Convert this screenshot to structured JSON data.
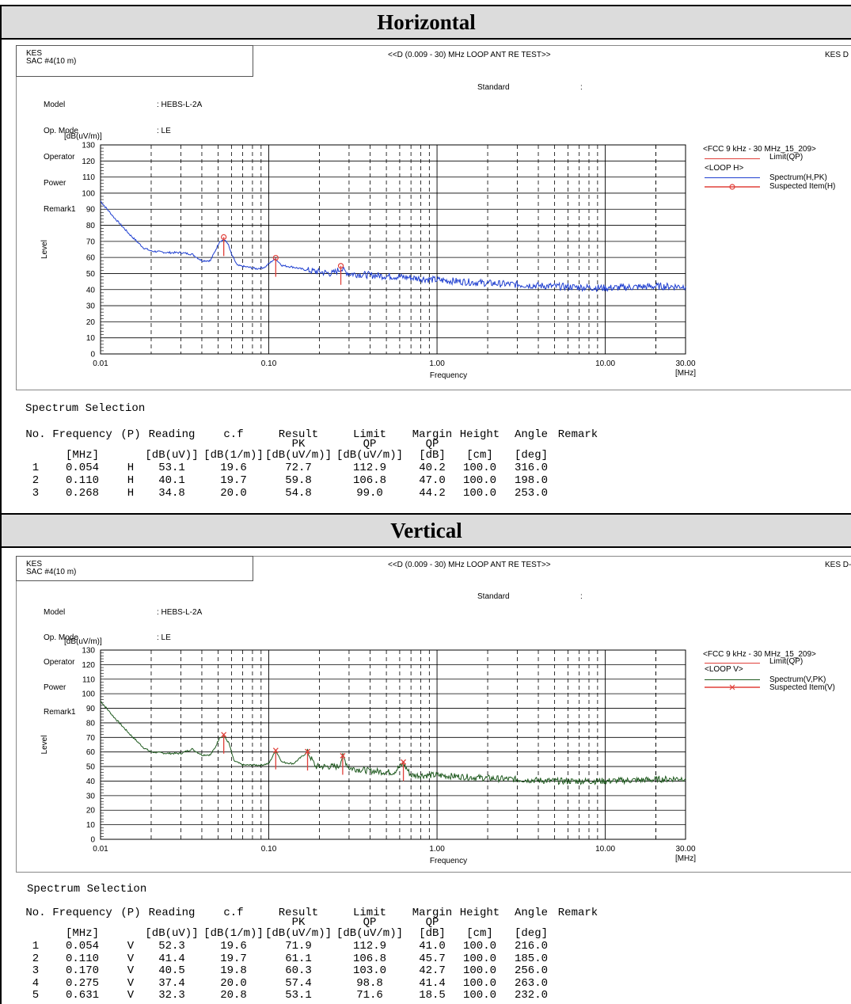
{
  "sections": [
    {
      "id": "h",
      "heading": "Horizontal",
      "lab": {
        "line1": "KES",
        "line2": "SAC #4(10 m)"
      },
      "test_title": "<<D (0.009 - 30) MHz LOOP ANT RE TEST>>",
      "report_tag": "KES D",
      "info": {
        "labels": [
          "Model",
          "Op. Mode",
          "Operator",
          "Power",
          "Remark1"
        ],
        "values": [
          ": HEBS-L-2A",
          ": LE",
          ":",
          ":",
          ":"
        ],
        "standard_label": "Standard",
        "standard_value": ":"
      },
      "legend": {
        "limit_group": "<FCC 9 kHz - 30 MHz_15_209>",
        "limit_item": "Limit(QP)",
        "loop_group": "<LOOP H>",
        "spectrum_item": "Spectrum(H,PK)",
        "suspected_item": "Suspected Item(H)"
      },
      "chart_data": {
        "type": "line",
        "ylabel": "Level",
        "yunit": "[dB(uV/m)]",
        "xlabel": "Frequency",
        "xunit": "[MHz]",
        "xscale": "log",
        "xlim": [
          0.01,
          30
        ],
        "ylim": [
          0,
          130
        ],
        "x_tick_labels": [
          "0.01",
          "0.10",
          "1.00",
          "10.00",
          "30.00"
        ],
        "y_tick_labels": [
          "0",
          "10",
          "20",
          "30",
          "40",
          "50",
          "60",
          "70",
          "80",
          "90",
          "100",
          "110",
          "120",
          "130"
        ],
        "grid": true,
        "series_color": "#1f3fd0",
        "marker_color": "#e0403a",
        "marker": "circle",
        "spectrum": {
          "x": [
            0.01,
            0.012,
            0.015,
            0.018,
            0.02,
            0.025,
            0.03,
            0.035,
            0.04,
            0.045,
            0.048,
            0.051,
            0.054,
            0.057,
            0.06,
            0.065,
            0.075,
            0.085,
            0.095,
            0.105,
            0.11,
            0.12,
            0.14,
            0.17,
            0.2,
            0.24,
            0.268,
            0.3,
            0.4,
            0.6,
            1.0,
            2.0,
            5.0,
            10.0,
            20.0,
            30.0
          ],
          "y": [
            95,
            85,
            74,
            66,
            64,
            63,
            63,
            62,
            58,
            58,
            64,
            70,
            71,
            69,
            62,
            55,
            54,
            53,
            54,
            58,
            59,
            55,
            54,
            52,
            51,
            50,
            53,
            50,
            49,
            48,
            46,
            44,
            42,
            41,
            42,
            42
          ]
        },
        "suspected": {
          "x": [
            0.054,
            0.11,
            0.268
          ],
          "y": [
            72.7,
            59.8,
            54.8
          ]
        }
      },
      "table": {
        "title": "Spectrum Selection",
        "headers": [
          "No.",
          "Frequency",
          "(P)",
          "Reading",
          "c.f",
          "Result",
          "Limit",
          "Margin",
          "Height",
          "Angle",
          "Remark"
        ],
        "subheaders": {
          "result": "PK",
          "limit": "QP",
          "margin": "QP"
        },
        "units": [
          "[MHz]",
          "[dB(uV)]",
          "[dB(1/m)]",
          "[dB(uV/m)]",
          "[dB(uV/m)]",
          "[dB]",
          "[cm]",
          "[deg]"
        ],
        "rows": [
          [
            "1",
            "0.054",
            "H",
            "53.1",
            "19.6",
            "72.7",
            "112.9",
            "40.2",
            "100.0",
            "316.0"
          ],
          [
            "2",
            "0.110",
            "H",
            "40.1",
            "19.7",
            "59.8",
            "106.8",
            "47.0",
            "100.0",
            "198.0"
          ],
          [
            "3",
            "0.268",
            "H",
            "34.8",
            "20.0",
            "54.8",
            "99.0",
            "44.2",
            "100.0",
            "253.0"
          ]
        ]
      }
    },
    {
      "id": "v",
      "heading": "Vertical",
      "lab": {
        "line1": "KES",
        "line2": "SAC #4(10 m)"
      },
      "test_title": "<<D (0.009 - 30) MHz LOOP ANT RE TEST>>",
      "report_tag": "KES D-",
      "info": {
        "labels": [
          "Model",
          "Op. Mode",
          "Operator",
          "Power",
          "Remark1"
        ],
        "values": [
          ": HEBS-L-2A",
          ": LE",
          ":",
          ":",
          ":"
        ],
        "standard_label": "Standard",
        "standard_value": ":"
      },
      "legend": {
        "limit_group": "<FCC 9 kHz - 30 MHz_15_209>",
        "limit_item": "Limit(QP)",
        "loop_group": "<LOOP V>",
        "spectrum_item": "Spectrum(V,PK)",
        "suspected_item": "Suspected Item(V)"
      },
      "chart_data": {
        "type": "line",
        "ylabel": "Level",
        "yunit": "[dB(uV/m)]",
        "xlabel": "Frequency",
        "xunit": "[MHz]",
        "xscale": "log",
        "xlim": [
          0.01,
          30
        ],
        "ylim": [
          0,
          130
        ],
        "x_tick_labels": [
          "0.01",
          "0.10",
          "1.00",
          "10.00",
          "30.00"
        ],
        "y_tick_labels": [
          "0",
          "10",
          "20",
          "30",
          "40",
          "50",
          "60",
          "70",
          "80",
          "90",
          "100",
          "110",
          "120",
          "130"
        ],
        "grid": true,
        "series_color": "#1f5a1f",
        "marker_color": "#e0403a",
        "marker": "x",
        "spectrum": {
          "x": [
            0.01,
            0.012,
            0.015,
            0.018,
            0.02,
            0.025,
            0.03,
            0.035,
            0.04,
            0.045,
            0.048,
            0.051,
            0.054,
            0.058,
            0.062,
            0.07,
            0.08,
            0.09,
            0.1,
            0.11,
            0.12,
            0.14,
            0.17,
            0.19,
            0.22,
            0.26,
            0.275,
            0.3,
            0.4,
            0.55,
            0.631,
            0.7,
            1.0,
            2.0,
            5.0,
            10.0,
            20.0,
            30.0
          ],
          "y": [
            95,
            84,
            72,
            63,
            60,
            59,
            59,
            62,
            58,
            58,
            63,
            70,
            71,
            66,
            54,
            51,
            51,
            51,
            52,
            61,
            53,
            52,
            60,
            50,
            50,
            50,
            57,
            49,
            47,
            46,
            52,
            44,
            44,
            42,
            40,
            40,
            41,
            42
          ]
        },
        "suspected": {
          "x": [
            0.054,
            0.11,
            0.17,
            0.275,
            0.631
          ],
          "y": [
            71.9,
            61.1,
            60.3,
            57.4,
            53.1
          ]
        }
      },
      "table": {
        "title": "Spectrum Selection",
        "headers": [
          "No.",
          "Frequency",
          "(P)",
          "Reading",
          "c.f",
          "Result",
          "Limit",
          "Margin",
          "Height",
          "Angle",
          "Remark"
        ],
        "subheaders": {
          "result": "PK",
          "limit": "QP",
          "margin": "QP"
        },
        "units": [
          "[MHz]",
          "[dB(uV)]",
          "[dB(1/m)]",
          "[dB(uV/m)]",
          "[dB(uV/m)]",
          "[dB]",
          "[cm]",
          "[deg]"
        ],
        "rows": [
          [
            "1",
            "0.054",
            "V",
            "52.3",
            "19.6",
            "71.9",
            "112.9",
            "41.0",
            "100.0",
            "216.0"
          ],
          [
            "2",
            "0.110",
            "V",
            "41.4",
            "19.7",
            "61.1",
            "106.8",
            "45.7",
            "100.0",
            "185.0"
          ],
          [
            "3",
            "0.170",
            "V",
            "40.5",
            "19.8",
            "60.3",
            "103.0",
            "42.7",
            "100.0",
            "256.0"
          ],
          [
            "4",
            "0.275",
            "V",
            "37.4",
            "20.0",
            "57.4",
            "98.8",
            "41.4",
            "100.0",
            "263.0"
          ],
          [
            "5",
            "0.631",
            "V",
            "32.3",
            "20.8",
            "53.1",
            "71.6",
            "18.5",
            "100.0",
            "232.0"
          ]
        ]
      }
    }
  ]
}
